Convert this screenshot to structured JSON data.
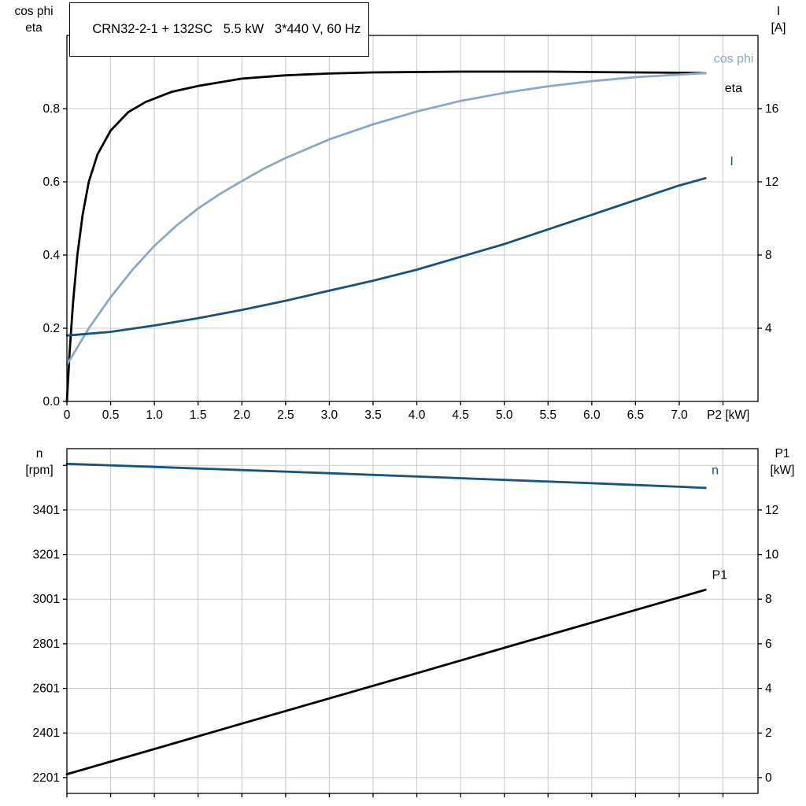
{
  "colors": {
    "black": "#000000",
    "curve_blue_light": "#8aa9c9",
    "curve_blue_dark": "#14547f",
    "grid": "#c9c9c9",
    "frame": "#000000",
    "text": "#000000"
  },
  "chart_data": [
    {
      "type": "line",
      "title": "CRN32-2-1 + 132SC   5.5 kW   3*440 V, 60 Hz",
      "xlabel": "P2 [kW]",
      "xlabel_pos": 7.56,
      "ylabel_left_line1": "cos phi",
      "ylabel_left_line2": "eta",
      "ylabel_right_line1": "I",
      "ylabel_right_line2": "[A]",
      "xlim": [
        0,
        7.9
      ],
      "ylim_left": [
        0,
        1.0
      ],
      "ylim_right": [
        0,
        20
      ],
      "grid": true,
      "legend_position": "curve-end-labels",
      "x_ticks": [
        {
          "v": 0.0,
          "t": "0"
        },
        {
          "v": 0.5,
          "t": "0.5"
        },
        {
          "v": 1.0,
          "t": "1.0"
        },
        {
          "v": 1.5,
          "t": "1.5"
        },
        {
          "v": 2.0,
          "t": "2.0"
        },
        {
          "v": 2.5,
          "t": "2.5"
        },
        {
          "v": 3.0,
          "t": "3.0"
        },
        {
          "v": 3.5,
          "t": "3.5"
        },
        {
          "v": 4.0,
          "t": "4.0"
        },
        {
          "v": 4.5,
          "t": "4.5"
        },
        {
          "v": 5.0,
          "t": "5.0"
        },
        {
          "v": 5.5,
          "t": "5.5"
        },
        {
          "v": 6.0,
          "t": "6.0"
        },
        {
          "v": 6.5,
          "t": "6.5"
        },
        {
          "v": 7.0,
          "t": "7.0"
        },
        {
          "v": 7.5,
          "t": ""
        }
      ],
      "y_ticks_left": [
        {
          "v": 0.0,
          "t": "0.0"
        },
        {
          "v": 0.2,
          "t": "0.2"
        },
        {
          "v": 0.4,
          "t": "0.4"
        },
        {
          "v": 0.6,
          "t": "0.6"
        },
        {
          "v": 0.8,
          "t": "0.8"
        }
      ],
      "y_ticks_right": [
        {
          "v": 4,
          "t": "4"
        },
        {
          "v": 8,
          "t": "8"
        },
        {
          "v": 12,
          "t": "12"
        },
        {
          "v": 16,
          "t": "16"
        }
      ],
      "series": [
        {
          "name": "eta",
          "axis": "left",
          "color": "black",
          "width": 2.8,
          "x": [
            0,
            0.03,
            0.07,
            0.12,
            0.18,
            0.25,
            0.35,
            0.5,
            0.7,
            0.9,
            1.2,
            1.5,
            2.0,
            2.5,
            3.0,
            3.5,
            4.0,
            4.5,
            5.0,
            5.5,
            6.0,
            6.5,
            7.0,
            7.3
          ],
          "y": [
            0,
            0.13,
            0.27,
            0.4,
            0.51,
            0.6,
            0.675,
            0.74,
            0.79,
            0.818,
            0.846,
            0.862,
            0.882,
            0.891,
            0.896,
            0.899,
            0.9,
            0.901,
            0.901,
            0.901,
            0.9,
            0.899,
            0.898,
            0.897
          ],
          "label": {
            "t": "eta",
            "x": 7.72,
            "y": 0.845,
            "anchor": "end",
            "color": "black"
          }
        },
        {
          "name": "cos phi",
          "axis": "left",
          "color": "curve_blue_light",
          "width": 2.8,
          "x": [
            0,
            0.25,
            0.5,
            0.75,
            1.0,
            1.25,
            1.5,
            1.75,
            2.0,
            2.25,
            2.5,
            3.0,
            3.5,
            4.0,
            4.5,
            5.0,
            5.5,
            6.0,
            6.5,
            7.0,
            7.3
          ],
          "y": [
            0.1,
            0.2,
            0.285,
            0.36,
            0.425,
            0.48,
            0.527,
            0.567,
            0.602,
            0.636,
            0.665,
            0.716,
            0.757,
            0.792,
            0.821,
            0.843,
            0.861,
            0.875,
            0.886,
            0.893,
            0.897
          ],
          "label": {
            "t": "cos phi",
            "x": 7.85,
            "y": 0.926,
            "anchor": "end",
            "color": "curve_blue_light"
          }
        },
        {
          "name": "I",
          "axis": "right",
          "color": "curve_blue_dark",
          "width": 2.8,
          "x": [
            0,
            0.5,
            1.0,
            1.5,
            2.0,
            2.5,
            3.0,
            3.5,
            4.0,
            4.5,
            5.0,
            5.5,
            6.0,
            6.5,
            7.0,
            7.3
          ],
          "y": [
            3.6,
            3.8,
            4.15,
            4.55,
            5.0,
            5.5,
            6.05,
            6.6,
            7.2,
            7.9,
            8.6,
            9.4,
            10.2,
            11.0,
            11.8,
            12.2
          ],
          "label": {
            "t": "I",
            "x": 7.62,
            "y": 12.9,
            "anchor": "end",
            "color": "curve_blue_dark"
          }
        }
      ]
    },
    {
      "type": "line",
      "title": "",
      "xlabel": "",
      "xlabel_pos": null,
      "ylabel_left_line1": "n",
      "ylabel_left_line2": "[rpm]",
      "ylabel_right_line1": "P1",
      "ylabel_right_line2": "[kW]",
      "xlim": [
        0,
        7.9
      ],
      "ylim_left": [
        2130,
        3676
      ],
      "ylim_right": [
        -0.71,
        14.75
      ],
      "grid": true,
      "legend_position": "curve-end-labels",
      "x_ticks": [
        {
          "v": 0.0,
          "t": ""
        },
        {
          "v": 0.5,
          "t": ""
        },
        {
          "v": 1.0,
          "t": ""
        },
        {
          "v": 1.5,
          "t": ""
        },
        {
          "v": 2.0,
          "t": ""
        },
        {
          "v": 2.5,
          "t": ""
        },
        {
          "v": 3.0,
          "t": ""
        },
        {
          "v": 3.5,
          "t": ""
        },
        {
          "v": 4.0,
          "t": ""
        },
        {
          "v": 4.5,
          "t": ""
        },
        {
          "v": 5.0,
          "t": ""
        },
        {
          "v": 5.5,
          "t": ""
        },
        {
          "v": 6.0,
          "t": ""
        },
        {
          "v": 6.5,
          "t": ""
        },
        {
          "v": 7.0,
          "t": ""
        },
        {
          "v": 7.5,
          "t": ""
        }
      ],
      "y_ticks_left": [
        {
          "v": 2201,
          "t": "2201"
        },
        {
          "v": 2401,
          "t": "2401"
        },
        {
          "v": 2601,
          "t": "2601"
        },
        {
          "v": 2801,
          "t": "2801"
        },
        {
          "v": 3001,
          "t": "3001"
        },
        {
          "v": 3201,
          "t": "3201"
        },
        {
          "v": 3401,
          "t": "3401"
        },
        {
          "v": 3601,
          "t": ""
        }
      ],
      "y_ticks_right": [
        {
          "v": 0,
          "t": "0"
        },
        {
          "v": 2,
          "t": "2"
        },
        {
          "v": 4,
          "t": "4"
        },
        {
          "v": 6,
          "t": "6"
        },
        {
          "v": 8,
          "t": "8"
        },
        {
          "v": 10,
          "t": "10"
        },
        {
          "v": 12,
          "t": "12"
        }
      ],
      "series": [
        {
          "name": "n",
          "axis": "left",
          "color": "curve_blue_dark",
          "width": 2.8,
          "x": [
            0,
            1,
            2,
            3,
            4,
            5,
            6,
            7,
            7.3
          ],
          "y": [
            3608,
            3594,
            3580,
            3566,
            3551,
            3536,
            3521,
            3505,
            3500
          ],
          "label": {
            "t": "n",
            "x": 7.45,
            "y": 3562,
            "anchor": "end",
            "color": "curve_blue_dark"
          }
        },
        {
          "name": "P1",
          "axis": "right",
          "color": "black",
          "width": 2.8,
          "x": [
            0,
            1,
            2,
            3,
            4,
            5,
            6,
            7,
            7.3
          ],
          "y": [
            0.15,
            1.28,
            2.42,
            3.55,
            4.68,
            5.82,
            6.95,
            8.08,
            8.42
          ],
          "label": {
            "t": "P1",
            "x": 7.55,
            "y": 8.9,
            "anchor": "end",
            "color": "black"
          }
        }
      ]
    }
  ]
}
